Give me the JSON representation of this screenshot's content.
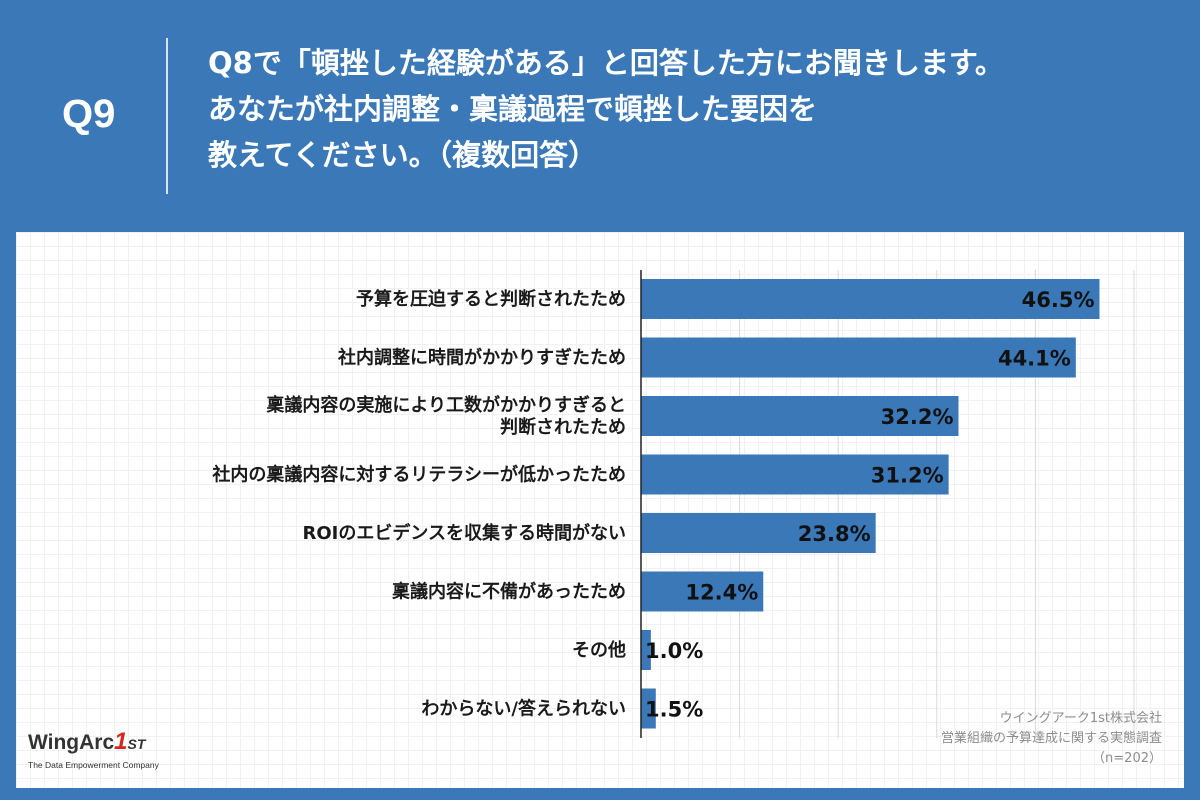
{
  "header": {
    "q_label": "Q9",
    "question_lines": [
      "Q8で「頓挫した経験がある」と回答した方にお聞きします。",
      "あなたが社内調整・稟議過程で頓挫した要因を",
      "教えてください。（複数回答）"
    ]
  },
  "colors": {
    "background": "#3a78b8",
    "bar": "#3a78b8",
    "panel": "#ffffff",
    "logo_accent": "#d7261e"
  },
  "chart_data": {
    "type": "bar",
    "orientation": "horizontal",
    "categories": [
      [
        "予算を圧迫すると判断されたため"
      ],
      [
        "社内調整に時間がかかりすぎたため"
      ],
      [
        "稟議内容の実施により工数がかかりすぎると",
        "判断されたため"
      ],
      [
        "社内の稟議内容に対するリテラシーが低かったため"
      ],
      [
        "ROIのエビデンスを収集する時間がない"
      ],
      [
        "稟議内容に不備があったため"
      ],
      [
        "その他"
      ],
      [
        "わからない/答えられない"
      ]
    ],
    "values": [
      46.5,
      44.1,
      32.2,
      31.2,
      23.8,
      12.4,
      1.0,
      1.5
    ],
    "value_labels": [
      "46.5%",
      "44.1%",
      "32.2%",
      "31.2%",
      "23.8%",
      "12.4%",
      "1.0%",
      "1.5%"
    ],
    "xlim": [
      0,
      50
    ],
    "grid": true,
    "unit": "%"
  },
  "logo": {
    "brand": "WingArc",
    "brand_num": "1",
    "brand_suffix": "ST",
    "tagline": "The Data Empowerment Company"
  },
  "source": {
    "line1": "ウイングアーク1st株式会社",
    "line2": "営業組織の予算達成に関する実態調査",
    "line3": "（n=202）"
  }
}
